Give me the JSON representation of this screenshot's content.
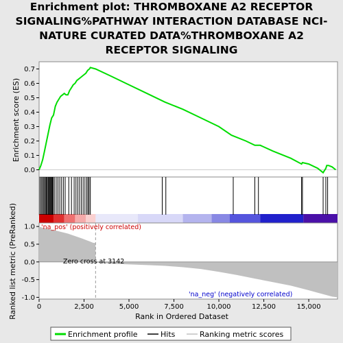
{
  "title_lines": [
    "Enrichment plot: THROMBOXANE A2 RECEPTOR",
    "SIGNALING%PATHWAY INTERACTION DATABASE NCI-",
    "NATURE CURATED DATA%THROMBOXANE A2",
    "RECEPTOR SIGNALING"
  ],
  "colors": {
    "enrichment_line": "#00dd00",
    "hits": "#000000",
    "ranking_fill": "#c0c0c0",
    "pos_label": "#cc0000",
    "neg_label": "#0000cc"
  },
  "chart_data": [
    {
      "type": "line",
      "name": "enrichment-profile",
      "ylabel": "Enrichment score (ES)",
      "xlim": [
        0,
        16600
      ],
      "ylim": [
        -0.05,
        0.75
      ],
      "yticks": [
        "0.0",
        "0.1",
        "0.2",
        "0.3",
        "0.4",
        "0.5",
        "0.6",
        "0.7"
      ],
      "grid": false,
      "x": [
        0,
        100,
        200,
        300,
        400,
        500,
        600,
        700,
        800,
        900,
        1000,
        1100,
        1200,
        1300,
        1400,
        1500,
        1600,
        1700,
        1800,
        1900,
        2000,
        2100,
        2200,
        2300,
        2400,
        2500,
        2600,
        2700,
        2800,
        2850,
        3142,
        4000,
        5000,
        6000,
        7000,
        8000,
        9000,
        10000,
        10700,
        11500,
        12000,
        12300,
        13000,
        14000,
        14600,
        14650,
        15000,
        15500,
        15800,
        15850,
        15950,
        16000,
        16100,
        16300,
        16500
      ],
      "y": [
        0.0,
        0.03,
        0.07,
        0.13,
        0.19,
        0.25,
        0.31,
        0.36,
        0.38,
        0.44,
        0.47,
        0.49,
        0.51,
        0.52,
        0.53,
        0.52,
        0.52,
        0.55,
        0.57,
        0.59,
        0.6,
        0.62,
        0.63,
        0.64,
        0.65,
        0.66,
        0.67,
        0.69,
        0.7,
        0.71,
        0.7,
        0.65,
        0.59,
        0.53,
        0.47,
        0.42,
        0.36,
        0.3,
        0.24,
        0.2,
        0.17,
        0.17,
        0.13,
        0.08,
        0.04,
        0.05,
        0.04,
        0.01,
        -0.02,
        -0.01,
        0.01,
        0.03,
        0.03,
        0.02,
        0.0
      ]
    },
    {
      "type": "scatter",
      "name": "hits",
      "x": [
        50,
        120,
        180,
        240,
        300,
        350,
        400,
        450,
        500,
        540,
        580,
        620,
        660,
        700,
        740,
        780,
        850,
        950,
        1050,
        1150,
        1250,
        1350,
        1450,
        1650,
        1800,
        1950,
        2050,
        2150,
        2250,
        2350,
        2450,
        2550,
        2650,
        2720,
        2780,
        2850,
        6850,
        7050,
        10800,
        12000,
        12200,
        14600,
        14650,
        15800,
        15950,
        16050
      ]
    },
    {
      "type": "area",
      "name": "ranked-list-metric",
      "ylabel": "Ranked list metric (PreRanked)",
      "xlabel": "Rank in Ordered Dataset",
      "xlim": [
        0,
        16600
      ],
      "ylim": [
        -1.05,
        1.1
      ],
      "yticks": [
        "-1.0",
        "-0.5",
        "0.0",
        "0.5",
        "1.0"
      ],
      "xticks": [
        "0",
        "2,500",
        "5,000",
        "7,500",
        "10,000",
        "12,500",
        "15,000"
      ],
      "x": [
        0,
        100,
        400,
        800,
        1200,
        1600,
        2000,
        2400,
        2800,
        3000,
        3142,
        3143,
        4000,
        5000,
        6000,
        7000,
        8000,
        9000,
        10000,
        11000,
        12000,
        13000,
        14000,
        15000,
        15500,
        16000,
        16300,
        16600
      ],
      "values": [
        1.0,
        0.98,
        0.94,
        0.9,
        0.85,
        0.8,
        0.73,
        0.66,
        0.58,
        0.54,
        0.53,
        -0.02,
        -0.05,
        -0.07,
        -0.09,
        -0.11,
        -0.15,
        -0.2,
        -0.28,
        -0.37,
        -0.47,
        -0.57,
        -0.67,
        -0.8,
        -0.87,
        -0.94,
        -0.98,
        -1.0
      ],
      "zero_cross_rank": 3142,
      "annotations": {
        "zero_cross": "Zero cross at 3142",
        "pos": "'na_pos' (positively correlated)",
        "neg": "'na_neg' (negatively correlated)"
      }
    }
  ],
  "legend": {
    "position": "bottom",
    "items": [
      {
        "label": "Enrichment profile"
      },
      {
        "label": "Hits"
      },
      {
        "label": "Ranking metric scores"
      }
    ]
  }
}
